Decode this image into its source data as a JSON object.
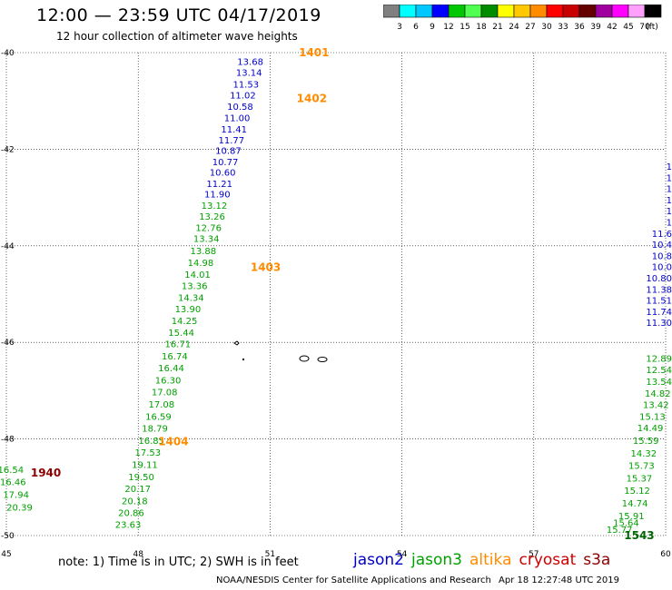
{
  "header": {
    "title": "12:00 — 23:59 UTC 04/17/2019",
    "subtitle": "12 hour collection of altimeter wave heights"
  },
  "colorbar": {
    "colors": [
      "#808080",
      "#00ffff",
      "#00c8ff",
      "#0000ff",
      "#00c800",
      "#50ff50",
      "#008c00",
      "#ffff00",
      "#ffc800",
      "#ff8c00",
      "#ff0000",
      "#c80000",
      "#640000",
      "#a000a0",
      "#ff00ff",
      "#ffa0ff",
      "#000000"
    ],
    "labels": [
      "3",
      "6",
      "9",
      "12",
      "15",
      "18",
      "21",
      "24",
      "27",
      "30",
      "33",
      "36",
      "39",
      "42",
      "45",
      "70"
    ],
    "unit": "(ft)"
  },
  "chart_data": {
    "type": "scatter",
    "xlim": [
      45,
      60
    ],
    "ylim": [
      -50,
      -40
    ],
    "xticks": [
      45,
      48,
      51,
      54,
      57,
      60
    ],
    "yticks": [
      -40,
      -42,
      -44,
      -46,
      -48,
      -50
    ],
    "grid": true,
    "series": [
      {
        "name": "jason2",
        "color": "#0000cc",
        "points": [
          {
            "x": 50.55,
            "y": -40.25,
            "v": "13.68"
          },
          {
            "x": 50.52,
            "y": -40.48,
            "v": "13.14"
          },
          {
            "x": 50.45,
            "y": -40.72,
            "v": "11.53"
          },
          {
            "x": 50.38,
            "y": -40.95,
            "v": "11.02"
          },
          {
            "x": 50.32,
            "y": -41.18,
            "v": "10.58"
          },
          {
            "x": 50.25,
            "y": -41.42,
            "v": "11.00"
          },
          {
            "x": 50.18,
            "y": -41.65,
            "v": "11.41"
          },
          {
            "x": 50.12,
            "y": -41.88,
            "v": "11.77"
          },
          {
            "x": 50.05,
            "y": -42.1,
            "v": "10.87"
          },
          {
            "x": 49.98,
            "y": -42.33,
            "v": "10.77"
          },
          {
            "x": 49.92,
            "y": -42.55,
            "v": "10.60"
          },
          {
            "x": 49.85,
            "y": -42.78,
            "v": "11.21"
          },
          {
            "x": 49.8,
            "y": -43.0,
            "v": "11.90"
          }
        ]
      },
      {
        "name": "jason3",
        "color": "#00a000",
        "points": [
          {
            "x": 49.73,
            "y": -43.23,
            "v": "13.12"
          },
          {
            "x": 49.68,
            "y": -43.46,
            "v": "13.26"
          },
          {
            "x": 49.6,
            "y": -43.69,
            "v": "12.76"
          },
          {
            "x": 49.55,
            "y": -43.92,
            "v": "13.34"
          },
          {
            "x": 49.48,
            "y": -44.17,
            "v": "13.88"
          },
          {
            "x": 49.42,
            "y": -44.42,
            "v": "14.98"
          },
          {
            "x": 49.35,
            "y": -44.66,
            "v": "14.01"
          },
          {
            "x": 49.28,
            "y": -44.9,
            "v": "13.36"
          },
          {
            "x": 49.2,
            "y": -45.14,
            "v": "14.34"
          },
          {
            "x": 49.13,
            "y": -45.38,
            "v": "13.90"
          },
          {
            "x": 49.05,
            "y": -45.62,
            "v": "14.25"
          },
          {
            "x": 48.98,
            "y": -45.86,
            "v": "15.44"
          },
          {
            "x": 48.9,
            "y": -46.1,
            "v": "16.71"
          },
          {
            "x": 48.83,
            "y": -46.35,
            "v": "16.74"
          },
          {
            "x": 48.75,
            "y": -46.6,
            "v": "16.44"
          },
          {
            "x": 48.68,
            "y": -46.85,
            "v": "16.30"
          },
          {
            "x": 48.6,
            "y": -47.1,
            "v": "17.08"
          },
          {
            "x": 48.53,
            "y": -47.35,
            "v": "17.08"
          },
          {
            "x": 48.46,
            "y": -47.6,
            "v": "16.59"
          },
          {
            "x": 48.38,
            "y": -47.85,
            "v": "18.79"
          },
          {
            "x": 48.3,
            "y": -48.1,
            "v": "16.85"
          },
          {
            "x": 48.22,
            "y": -48.35,
            "v": "17.53"
          },
          {
            "x": 48.15,
            "y": -48.6,
            "v": "19.11"
          },
          {
            "x": 48.07,
            "y": -48.85,
            "v": "19.50"
          },
          {
            "x": 47.99,
            "y": -49.1,
            "v": "20.17"
          },
          {
            "x": 47.92,
            "y": -49.35,
            "v": "20.18"
          },
          {
            "x": 47.84,
            "y": -49.6,
            "v": "20.86"
          },
          {
            "x": 47.77,
            "y": -49.84,
            "v": "23.63"
          },
          {
            "x": 45.1,
            "y": -48.7,
            "v": "16.54"
          },
          {
            "x": 45.15,
            "y": -48.96,
            "v": "16.46"
          },
          {
            "x": 45.22,
            "y": -49.22,
            "v": "17.94"
          },
          {
            "x": 45.3,
            "y": -49.48,
            "v": "20.39"
          },
          {
            "x": 59.85,
            "y": -46.4,
            "v": "12.89"
          },
          {
            "x": 59.85,
            "y": -46.64,
            "v": "12.54"
          },
          {
            "x": 59.85,
            "y": -46.88,
            "v": "13.54"
          },
          {
            "x": 59.82,
            "y": -47.12,
            "v": "14.82"
          },
          {
            "x": 59.78,
            "y": -47.36,
            "v": "13.42"
          },
          {
            "x": 59.7,
            "y": -47.6,
            "v": "15.13"
          },
          {
            "x": 59.65,
            "y": -47.84,
            "v": "14.49"
          },
          {
            "x": 59.55,
            "y": -48.1,
            "v": "15.59"
          },
          {
            "x": 59.5,
            "y": -48.36,
            "v": "14.32"
          },
          {
            "x": 59.45,
            "y": -48.62,
            "v": "15.73"
          },
          {
            "x": 59.4,
            "y": -48.88,
            "v": "15.37"
          },
          {
            "x": 59.35,
            "y": -49.14,
            "v": "15.12"
          },
          {
            "x": 59.3,
            "y": -49.4,
            "v": "14.74"
          },
          {
            "x": 59.22,
            "y": -49.66,
            "v": "15.91"
          },
          {
            "x": 59.1,
            "y": -49.8,
            "v": "15.64"
          },
          {
            "x": 58.95,
            "y": -49.94,
            "v": "15.77"
          }
        ]
      },
      {
        "name": "altika",
        "color": "#ff8c00",
        "points": []
      },
      {
        "name": "cryosat",
        "color": "#cc0000",
        "points": []
      },
      {
        "name": "s3a",
        "color": "#8b0000",
        "points": []
      }
    ],
    "right_edge_jason2": [
      "1",
      "1",
      "1",
      "1",
      "1",
      "1",
      "11.6",
      "10.4",
      "10.8",
      "10.0",
      "10.80",
      "11.38",
      "11.51",
      "11.74",
      "11.30"
    ],
    "track_labels": [
      {
        "text": "1401",
        "x": 52.0,
        "y": -40.0,
        "color": "#ff8c00"
      },
      {
        "text": "1402",
        "x": 51.95,
        "y": -40.95,
        "color": "#ff8c00"
      },
      {
        "text": "1403",
        "x": 50.9,
        "y": -44.45,
        "color": "#ff8c00"
      },
      {
        "text": "1404",
        "x": 48.8,
        "y": -48.05,
        "color": "#ff8c00"
      },
      {
        "text": "1940",
        "x": 45.9,
        "y": -48.7,
        "color": "#8b0000"
      },
      {
        "text": "1543",
        "x": 59.4,
        "y": -50.0,
        "color": "#006400"
      }
    ]
  },
  "footer": {
    "note": "note:  1) Time is in UTC;  2) SWH is in feet",
    "legend": [
      {
        "label": "jason2",
        "color": "#0000cc"
      },
      {
        "label": "jason3",
        "color": "#00a000"
      },
      {
        "label": "altika",
        "color": "#ff8c00"
      },
      {
        "label": "cryosat",
        "color": "#cc0000"
      },
      {
        "label": "s3a",
        "color": "#8b0000"
      }
    ],
    "credit": "NOAA/NESDIS Center for Satellite Applications and Research",
    "timestamp": "Apr 18 12:27:48 UTC 2019"
  }
}
